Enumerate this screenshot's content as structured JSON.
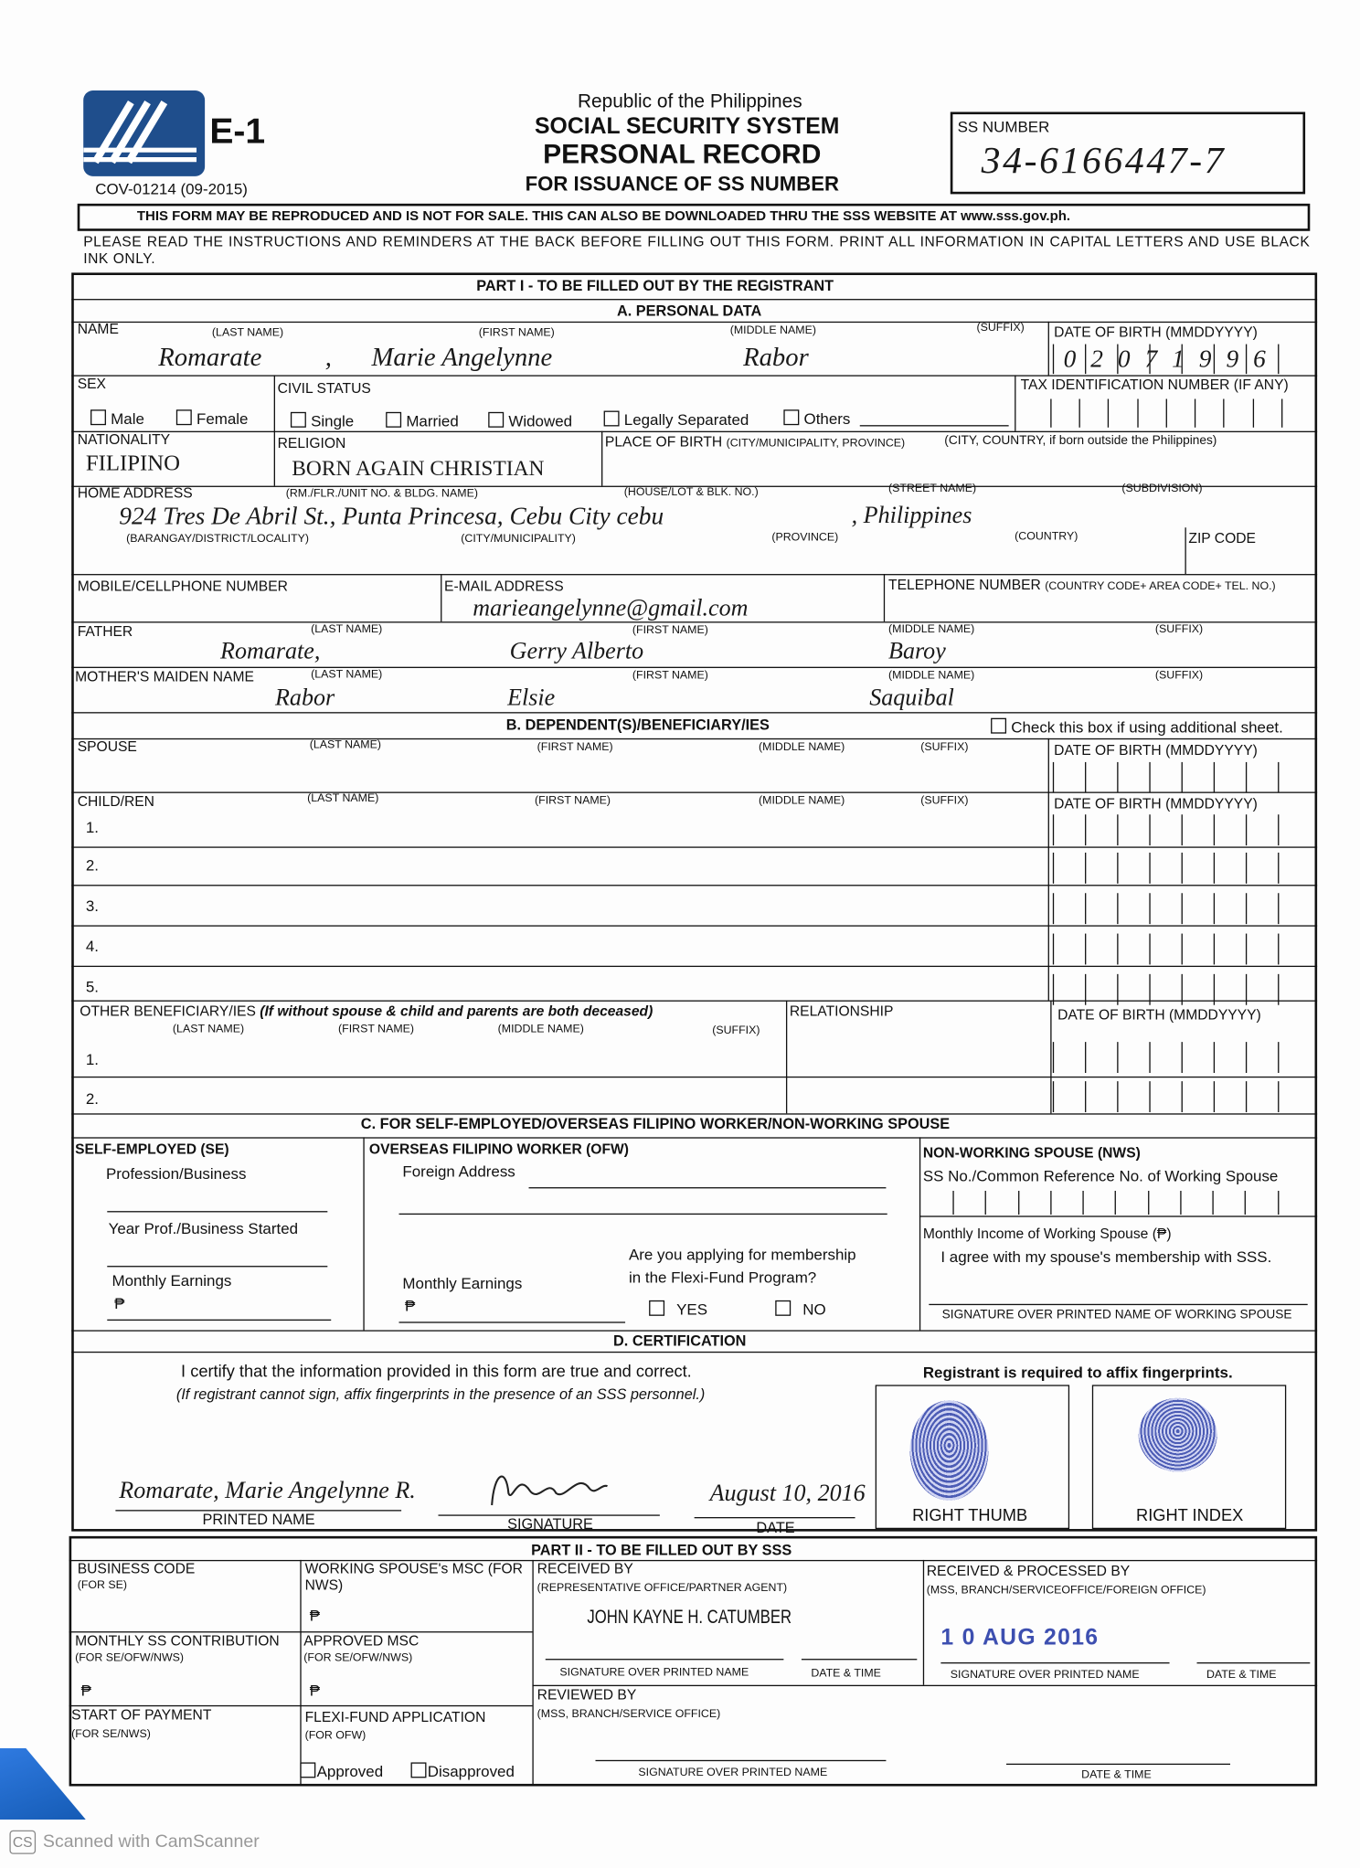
{
  "header": {
    "form_code": "E-1",
    "form_version": "COV-01214 (09-2015)",
    "republic": "Republic of the Philippines",
    "agency": "SOCIAL SECURITY SYSTEM",
    "title": "PERSONAL RECORD",
    "subtitle": "FOR ISSUANCE OF SS NUMBER",
    "ss_number_label": "SS NUMBER",
    "ss_number_value": "34-6166447-7",
    "brand_color": "#1f4e8c"
  },
  "notice": "THIS FORM MAY BE REPRODUCED AND IS NOT FOR SALE.  THIS CAN ALSO BE DOWNLOADED THRU THE SSS WEBSITE AT www.sss.gov.ph.",
  "instructions": "PLEASE READ THE INSTRUCTIONS AND REMINDERS AT THE BACK BEFORE FILLING OUT THIS FORM.  PRINT ALL INFORMATION IN CAPITAL LETTERS AND USE BLACK INK ONLY.",
  "part1": {
    "title": "PART I - TO BE FILLED OUT BY THE REGISTRANT",
    "section_a": "A. PERSONAL DATA",
    "name": {
      "label": "NAME",
      "last_label": "(LAST NAME)",
      "first_label": "(FIRST NAME)",
      "middle_label": "(MIDDLE NAME)",
      "suffix_label": "(SUFFIX)",
      "last": "Romarate",
      "comma": ",",
      "first": "Marie  Angelynne",
      "middle": "Rabor"
    },
    "dob": {
      "label": "DATE OF BIRTH (MMDDYYYY)",
      "value": "0 2 0 7 1 9 9 6"
    },
    "sex": {
      "label": "SEX",
      "options": [
        "Male",
        "Female"
      ]
    },
    "civil": {
      "label": "CIVIL STATUS",
      "options": [
        "Single",
        "Married",
        "Widowed",
        "Legally Separated",
        "Others"
      ]
    },
    "tin": {
      "label": "TAX IDENTIFICATION NUMBER (IF ANY)"
    },
    "nationality": {
      "label": "NATIONALITY",
      "value": "FILIPINO"
    },
    "religion": {
      "label": "RELIGION",
      "value": "BORN AGAIN CHRISTIAN"
    },
    "birthplace": {
      "label": "PLACE OF BIRTH",
      "label_sub": "(CITY/MUNICIPALITY, PROVINCE)",
      "label_abroad": "(CITY, COUNTRY, if born outside the Philippines)"
    },
    "address": {
      "label": "HOME ADDRESS",
      "rm_label": "(RM./FLR./UNIT NO. & BLDG. NAME)",
      "house_label": "(HOUSE/LOT & BLK. NO.)",
      "street_label": "(STREET NAME)",
      "subdivision_label": "(SUBDIVISION)",
      "barangay_label": "(BARANGAY/DISTRICT/LOCALITY)",
      "city_label": "(CITY/MUNICIPALITY)",
      "province_label": "(PROVINCE)",
      "country_label": "(COUNTRY)",
      "zip_label": "ZIP CODE",
      "value": "924  Tres De Abril St.,  Punta Princesa, Cebu City  cebu",
      "country": ", Philippines"
    },
    "mobile": {
      "label": "MOBILE/CELLPHONE NUMBER"
    },
    "email": {
      "label": "E-MAIL ADDRESS",
      "value": "marieangelynne@gmail.com"
    },
    "telephone": {
      "label": "TELEPHONE NUMBER",
      "label_sub": "(COUNTRY CODE+ AREA CODE+ TEL. NO.)"
    },
    "father": {
      "label": "FATHER",
      "last_label": "(LAST NAME)",
      "first_label": "(FIRST NAME)",
      "middle_label": "(MIDDLE NAME)",
      "suffix_label": "(SUFFIX)",
      "last": "Romarate,",
      "first": "Gerry  Alberto",
      "middle": "Baroy"
    },
    "mother": {
      "label": "MOTHER'S MAIDEN NAME",
      "last_label": "(LAST NAME)",
      "first_label": "(FIRST NAME)",
      "middle_label": "(MIDDLE NAME)",
      "suffix_label": "(SUFFIX)",
      "last": "Rabor",
      "first": "Elsie",
      "middle": "Saquibal"
    },
    "section_b": "B.  DEPENDENT(S)/BENEFICIARY/IES",
    "additional_sheet": "Check this box if using additional sheet.",
    "spouse": {
      "label": "SPOUSE",
      "last_label": "(LAST NAME)",
      "first_label": "(FIRST NAME)",
      "middle_label": "(MIDDLE NAME)",
      "suffix_label": "(SUFFIX)",
      "dob_label": "DATE OF BIRTH (MMDDYYYY)"
    },
    "children": {
      "label": "CHILD/REN",
      "last_label": "(LAST NAME)",
      "first_label": "(FIRST NAME)",
      "middle_label": "(MIDDLE NAME)",
      "suffix_label": "(SUFFIX)",
      "dob_label": "DATE OF BIRTH (MMDDYYYY)",
      "rows": [
        "1.",
        "2.",
        "3.",
        "4.",
        "5."
      ]
    },
    "other": {
      "label": "OTHER BENEFICIARY/IES",
      "note": "(If without spouse & child and parents are both deceased)",
      "last_label": "(LAST NAME)",
      "first_label": "(FIRST NAME)",
      "middle_label": "(MIDDLE NAME)",
      "suffix_label": "(SUFFIX)",
      "relationship_label": "RELATIONSHIP",
      "dob_label": "DATE OF BIRTH (MMDDYYYY)",
      "rows": [
        "1.",
        "2."
      ]
    },
    "section_c": "C. FOR SELF-EMPLOYED/OVERSEAS FILIPINO WORKER/NON-WORKING SPOUSE",
    "se": {
      "label": "SELF-EMPLOYED (SE)",
      "profession": "Profession/Business",
      "year": "Year Prof./Business Started",
      "earnings": "Monthly Earnings",
      "peso": "₱"
    },
    "ofw": {
      "label": "OVERSEAS FILIPINO WORKER (OFW)",
      "address": "Foreign Address",
      "earnings": "Monthly Earnings",
      "peso": "₱",
      "flexi_q": "Are you applying for membership",
      "flexi_q2": "in the Flexi-Fund Program?",
      "yes": "YES",
      "no": "NO"
    },
    "nws": {
      "label": "NON-WORKING SPOUSE (NWS)",
      "ss_no": "SS No./Common Reference No. of Working Spouse",
      "income": "Monthly Income of Working Spouse (₱)",
      "agree": "I agree with my spouse's membership with SSS.",
      "signature": "SIGNATURE OVER PRINTED NAME OF WORKING SPOUSE"
    },
    "section_d": "D.  CERTIFICATION",
    "cert": {
      "text": "I certify that the information provided in this form are true and correct.",
      "note": "(If registrant cannot sign, affix fingerprints in the presence of an SSS personnel.)",
      "fingerprint_note": "Registrant is required to affix fingerprints.",
      "printed_name": "Romarate, Marie  Angelynne R.",
      "printed_name_label": "PRINTED NAME",
      "signature_label": "SIGNATURE",
      "date": "August 10, 2016",
      "date_label": "DATE",
      "right_thumb": "RIGHT THUMB",
      "right_index": "RIGHT INDEX"
    }
  },
  "part2": {
    "title": "PART II - TO BE FILLED OUT BY SSS",
    "business_code": "BUSINESS CODE",
    "business_code_sub": "(FOR SE)",
    "ws_msc": "WORKING SPOUSE's MSC (FOR NWS)",
    "peso": "₱",
    "monthly_contrib": "MONTHLY SS CONTRIBUTION",
    "monthly_contrib_sub": "(FOR SE/OFW/NWS)",
    "approved_msc": "APPROVED MSC",
    "approved_msc_sub": "(FOR SE/OFW/NWS)",
    "start_payment": "START OF PAYMENT",
    "start_payment_sub": "(FOR SE/NWS)",
    "flexi": "FLEXI-FUND APPLICATION",
    "flexi_sub": "(FOR OFW)",
    "approved": "Approved",
    "disapproved": "Disapproved",
    "received_by": "RECEIVED BY",
    "received_by_sub": "(REPRESENTATIVE OFFICE/PARTNER AGENT)",
    "received_name": "JOHN KAYNE H. CATUMBER",
    "sig_label": "SIGNATURE OVER PRINTED NAME",
    "datetime_label": "DATE & TIME",
    "processed_by": "RECEIVED & PROCESSED BY",
    "processed_by_sub": "(MSS, BRANCH/SERVICEOFFICE/FOREIGN OFFICE)",
    "stamp": "1 0 AUG 2016",
    "reviewed_by": "REVIEWED BY",
    "reviewed_by_sub": "(MSS, BRANCH/SERVICE OFFICE)"
  },
  "footer": {
    "scanner_logo": "CS",
    "scanner": "Scanned with CamScanner"
  }
}
